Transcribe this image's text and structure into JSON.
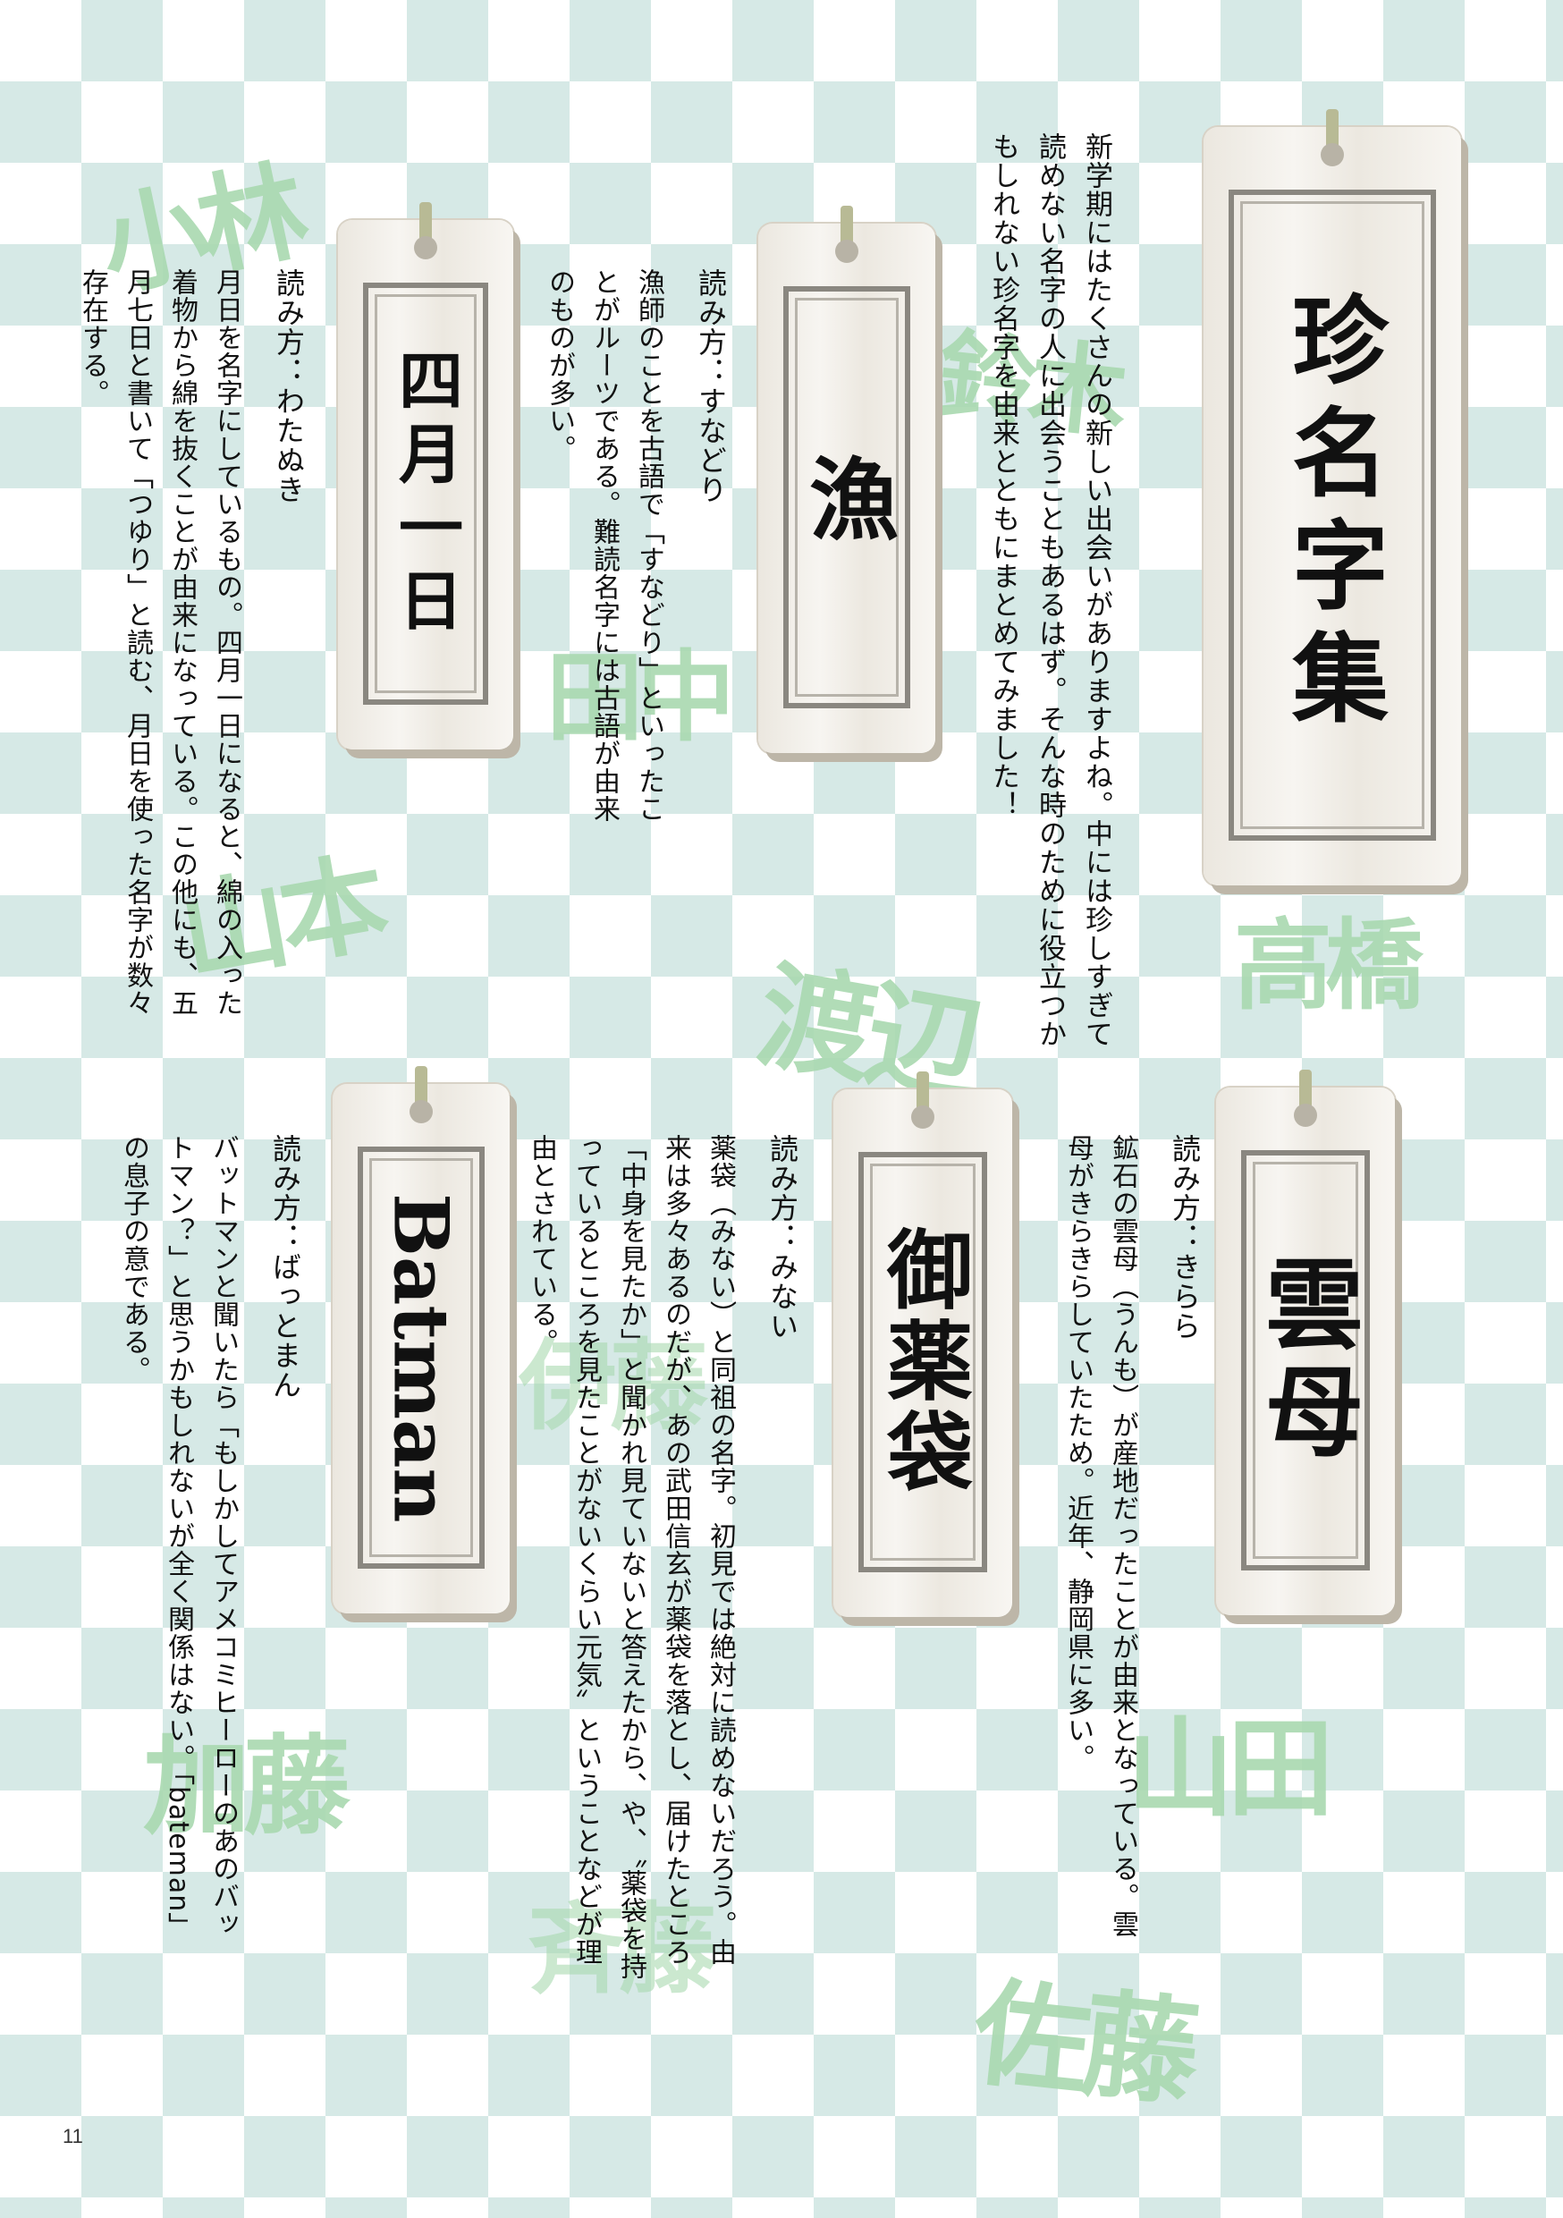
{
  "page_number": "11",
  "background_names": [
    "小林",
    "鈴木",
    "田中",
    "山本",
    "渡辺",
    "高橋",
    "伊藤",
    "加藤",
    "山田",
    "斉藤",
    "佐藤"
  ],
  "main": {
    "title": "珍名字集",
    "intro": "新学期にはたくさんの新しい出会いがありますよね。中には珍しすぎて読めない名字の人に出会うこともあるはず。そんな時のために役立つかもしれない珍名字を由来とともにまとめてみました！"
  },
  "entries": [
    {
      "name": "漁",
      "reading": "読み方：すなどり",
      "description": "漁師のことを古語で「すなどり」といったことがルーツである。難読名字には古語が由来のものが多い。"
    },
    {
      "name": "四月一日",
      "reading": "読み方：わたぬき",
      "description": "月日を名字にしているもの。四月一日になると、綿の入った着物から綿を抜くことが由来になっている。この他にも、五月七日と書いて「つゆり」と読む、月日を使った名字が数々存在する。"
    },
    {
      "name": "雲母",
      "reading": "読み方：きらら",
      "description": "鉱石の雲母（うんも）が産地だったことが由来となっている。雲母がきらきらしていたため。近年、静岡県に多い。"
    },
    {
      "name": "御薬袋",
      "reading": "読み方：みない",
      "description": "薬袋（みない）と同祖の名字。初見では絶対に読めないだろう。由来は多々あるのだが、あの武田信玄が薬袋を落とし、届けたところ「中身を見たか」と聞かれ見ていないと答えたから、や、〝薬袋を持っているところを見たことがないくらい元気〟ということなどが理由とされている。"
    },
    {
      "name": "Batman",
      "reading": "読み方：ばっとまん",
      "description": "バットマンと聞いたら「もしかしてアメコミヒーローのあのバットマン？」と思うかもしれないが全く関係はない。「bateman」の息子の意である。"
    }
  ]
}
